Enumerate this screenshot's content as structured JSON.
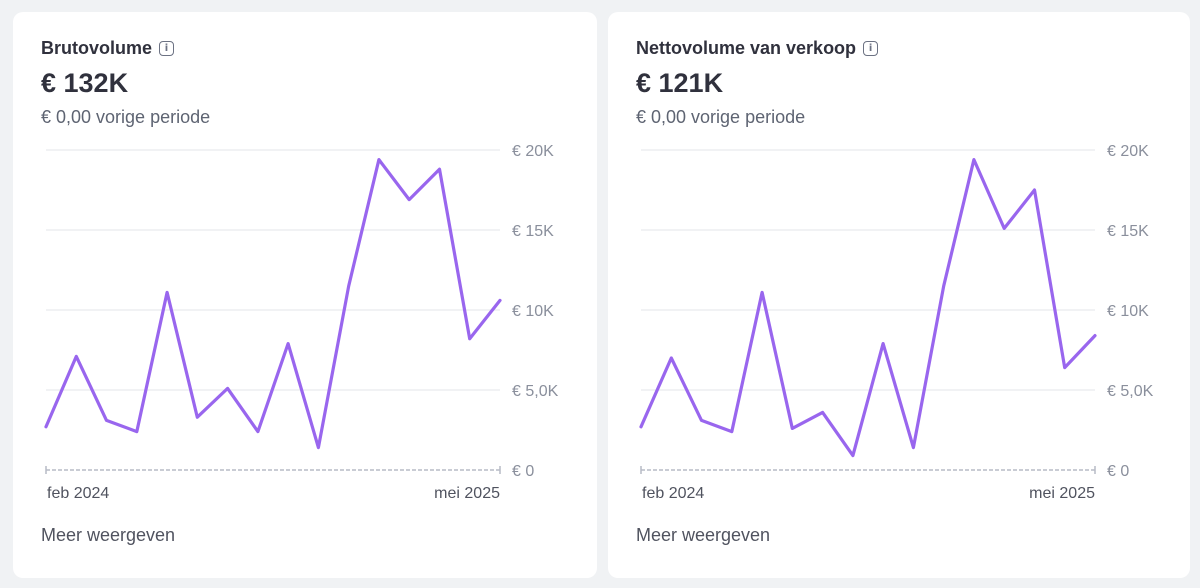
{
  "cards": [
    {
      "title": "Brutovolume",
      "info_icon": "info-icon",
      "value": "€ 132K",
      "previous": "€ 0,00 vorige periode",
      "more_label": "Meer weergeven"
    },
    {
      "title": "Nettovolume van verkoop",
      "info_icon": "info-icon",
      "value": "€ 121K",
      "previous": "€ 0,00 vorige periode",
      "more_label": "Meer weergeven"
    }
  ],
  "colors": {
    "line": "#9966ee",
    "grid": "#e3e5ea",
    "baseline": "#b7bbc6",
    "axis_text": "#8a8f9c"
  },
  "chart_data": [
    {
      "type": "line",
      "title": "Brutovolume",
      "x_tick_labels": [
        "feb 2024",
        "mei 2025"
      ],
      "y_tick_labels": [
        "€ 0",
        "€ 5,0K",
        "€ 10K",
        "€ 15K",
        "€ 20K"
      ],
      "y_ticks": [
        0,
        5000,
        10000,
        15000,
        20000
      ],
      "ylim": [
        0,
        20000
      ],
      "grid": true,
      "series": [
        {
          "values": [
            2700,
            7100,
            3100,
            2400,
            11100,
            3300,
            5100,
            2400,
            7900,
            1400,
            11500,
            19400,
            16900,
            18800,
            8200,
            10600
          ]
        }
      ]
    },
    {
      "type": "line",
      "title": "Nettovolume van verkoop",
      "x_tick_labels": [
        "feb 2024",
        "mei 2025"
      ],
      "y_tick_labels": [
        "€ 0",
        "€ 5,0K",
        "€ 10K",
        "€ 15K",
        "€ 20K"
      ],
      "y_ticks": [
        0,
        5000,
        10000,
        15000,
        20000
      ],
      "ylim": [
        0,
        20000
      ],
      "grid": true,
      "series": [
        {
          "values": [
            2700,
            7000,
            3100,
            2400,
            11100,
            2600,
            3600,
            900,
            7900,
            1400,
            11500,
            19400,
            15100,
            17500,
            6400,
            8400
          ]
        }
      ]
    }
  ]
}
